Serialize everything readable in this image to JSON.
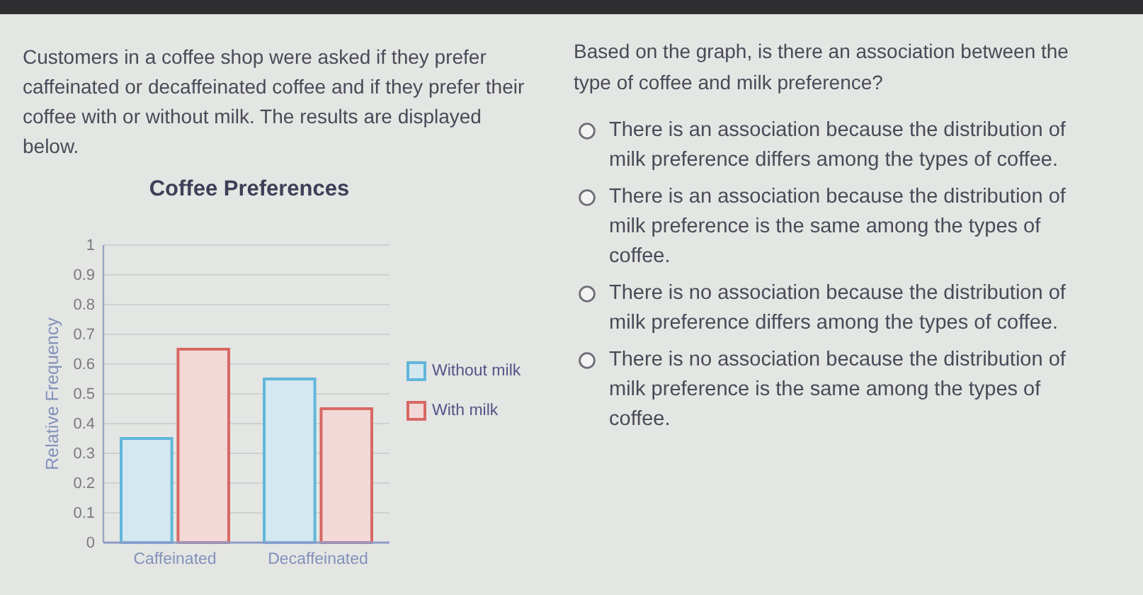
{
  "chart_data": {
    "type": "bar",
    "title": "Coffee Preferences",
    "ylabel": "Relative Frequency",
    "categories": [
      "Caffeinated",
      "Decaffeinated"
    ],
    "series": [
      {
        "name": "Without milk",
        "color": "#d3e8f1",
        "values": [
          0.35,
          0.55
        ]
      },
      {
        "name": "With milk",
        "color": "#f2d9d8",
        "values": [
          0.65,
          0.45
        ]
      }
    ],
    "ylim": [
      0,
      1
    ],
    "yticks": [
      0,
      0.1,
      0.2,
      0.3,
      0.4,
      0.5,
      0.6,
      0.7,
      0.8,
      0.9,
      1
    ],
    "grid": "y",
    "legend": "right",
    "annotations": [
      "Customers in a coffee shop were asked if they prefer caffeinated or decaffeinated coffee and if they prefer their coffee with or without milk. The results are displayed below.",
      "Based on the graph, is there an association between the type of coffee and milk preference?",
      "There is an association because the distribution of milk preference differs among the types of coffee.",
      "There is an association because the distribution of milk preference is the same among the types of coffee.",
      "There is no association because the distribution of milk preference differs among the types of coffee.",
      "There is no association because the distribution of milk preference is the same among the types of coffee."
    ]
  }
}
